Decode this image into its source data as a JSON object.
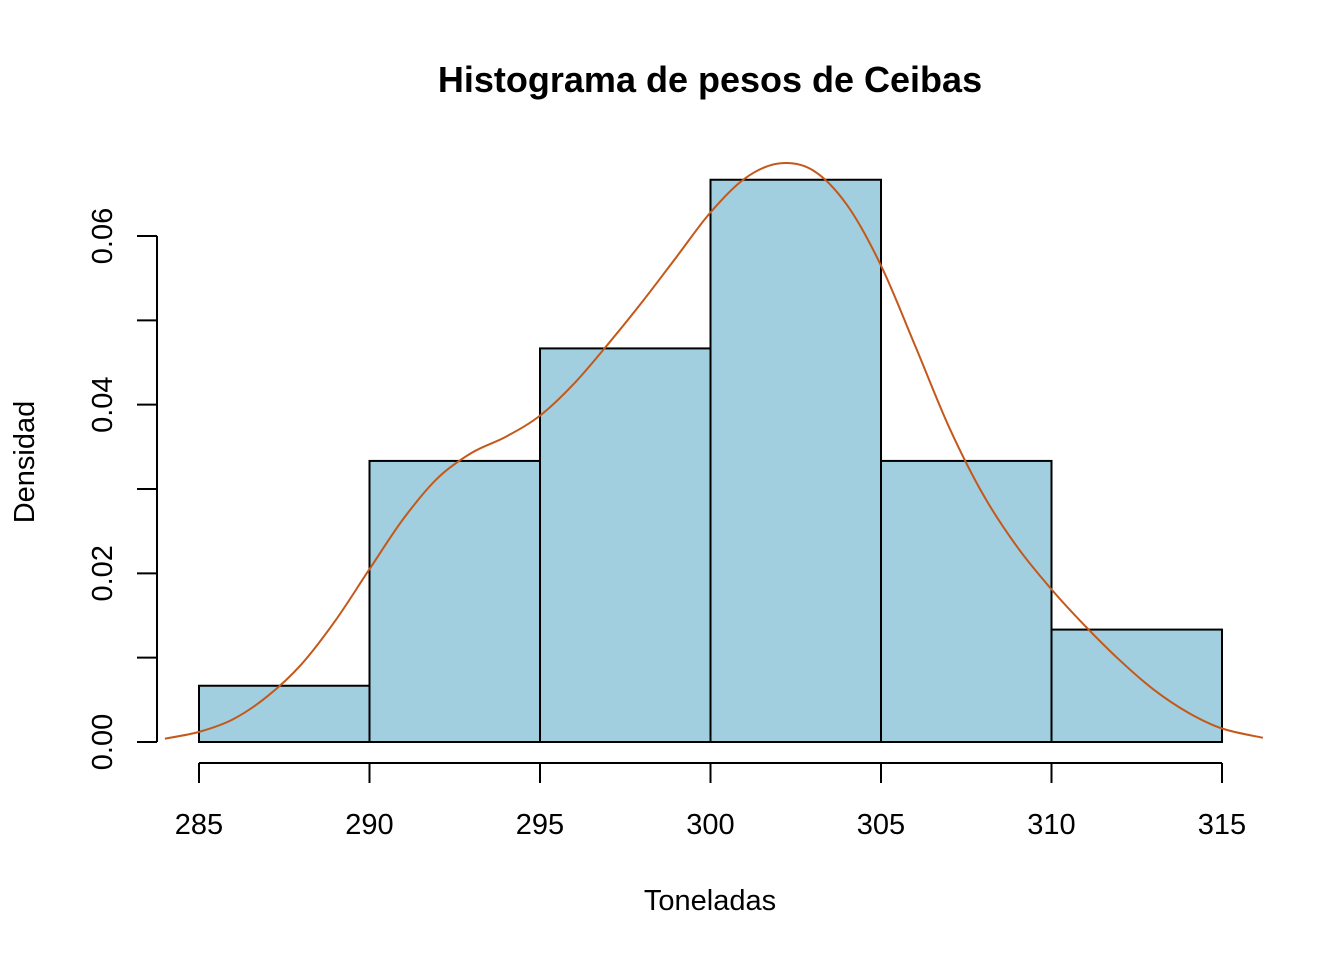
{
  "chart_data": {
    "type": "bar",
    "title": "Histograma de pesos de Ceibas",
    "xlabel": "Toneladas",
    "ylabel": "Densidad",
    "bins": [
      {
        "start": 285,
        "end": 290,
        "density": 0.00667
      },
      {
        "start": 290,
        "end": 295,
        "density": 0.03333
      },
      {
        "start": 295,
        "end": 300,
        "density": 0.04667
      },
      {
        "start": 300,
        "end": 305,
        "density": 0.06667
      },
      {
        "start": 305,
        "end": 310,
        "density": 0.03333
      },
      {
        "start": 310,
        "end": 315,
        "density": 0.01333
      }
    ],
    "density_curve": {
      "x": [
        284,
        285,
        286,
        287,
        288,
        289,
        290,
        291,
        292,
        293,
        294,
        295,
        296,
        297,
        298,
        299,
        300,
        301,
        302,
        303,
        304,
        305,
        306,
        307,
        308,
        309,
        310,
        311,
        312,
        313,
        314,
        315,
        316.2
      ],
      "y": [
        0.0004,
        0.0012,
        0.0027,
        0.0054,
        0.0092,
        0.0144,
        0.0205,
        0.0265,
        0.0313,
        0.0343,
        0.0362,
        0.0387,
        0.0425,
        0.0472,
        0.0522,
        0.0575,
        0.0628,
        0.0668,
        0.0686,
        0.0678,
        0.0637,
        0.0565,
        0.047,
        0.0373,
        0.0293,
        0.0231,
        0.0181,
        0.0137,
        0.0097,
        0.0062,
        0.0035,
        0.0016,
        0.0005
      ]
    },
    "xticks": [
      "285",
      "290",
      "295",
      "300",
      "305",
      "310",
      "315"
    ],
    "yticks": [
      "0.00",
      "0.02",
      "0.04",
      "0.06"
    ],
    "xlim": [
      285,
      315
    ],
    "ylim": [
      0,
      0.06
    ],
    "bar_color": "#a1cfe0",
    "curve_color": "#c4581a",
    "grid": false
  }
}
